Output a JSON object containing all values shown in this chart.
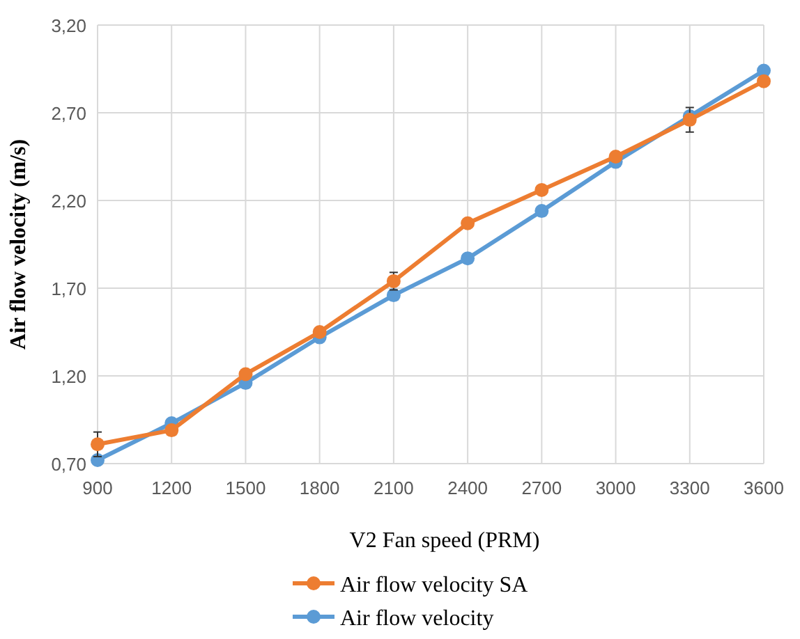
{
  "chart_data": {
    "type": "line",
    "xlabel": "V2 Fan speed (PRM)",
    "ylabel": "Air flow velocity (m/s)",
    "x": [
      900,
      1200,
      1500,
      1800,
      2100,
      2400,
      2700,
      3000,
      3300,
      3600
    ],
    "xlim": [
      900,
      3600
    ],
    "xticks": [
      900,
      1200,
      1500,
      1800,
      2100,
      2400,
      2700,
      3000,
      3300,
      3600
    ],
    "ylim": [
      0.7,
      3.2
    ],
    "yticks": [
      {
        "value": 0.7,
        "label": "0,70"
      },
      {
        "value": 1.2,
        "label": "1,20"
      },
      {
        "value": 1.7,
        "label": "1,70"
      },
      {
        "value": 2.2,
        "label": "2,20"
      },
      {
        "value": 2.7,
        "label": "2,70"
      },
      {
        "value": 3.2,
        "label": "3,20"
      }
    ],
    "grid": true,
    "legend": "bottom",
    "marker": "circle",
    "series": [
      {
        "name": "Air flow velocity SA",
        "color": "#ed7d31",
        "values": [
          0.81,
          0.89,
          1.21,
          1.45,
          1.74,
          2.07,
          2.26,
          2.45,
          2.66,
          2.88
        ],
        "errors": [
          0.07,
          null,
          null,
          null,
          0.05,
          null,
          null,
          null,
          0.07,
          null
        ]
      },
      {
        "name": "Air flow velocity",
        "color": "#5b9bd5",
        "values": [
          0.72,
          0.93,
          1.16,
          1.42,
          1.66,
          1.87,
          2.14,
          2.42,
          2.68,
          2.94
        ]
      }
    ]
  }
}
